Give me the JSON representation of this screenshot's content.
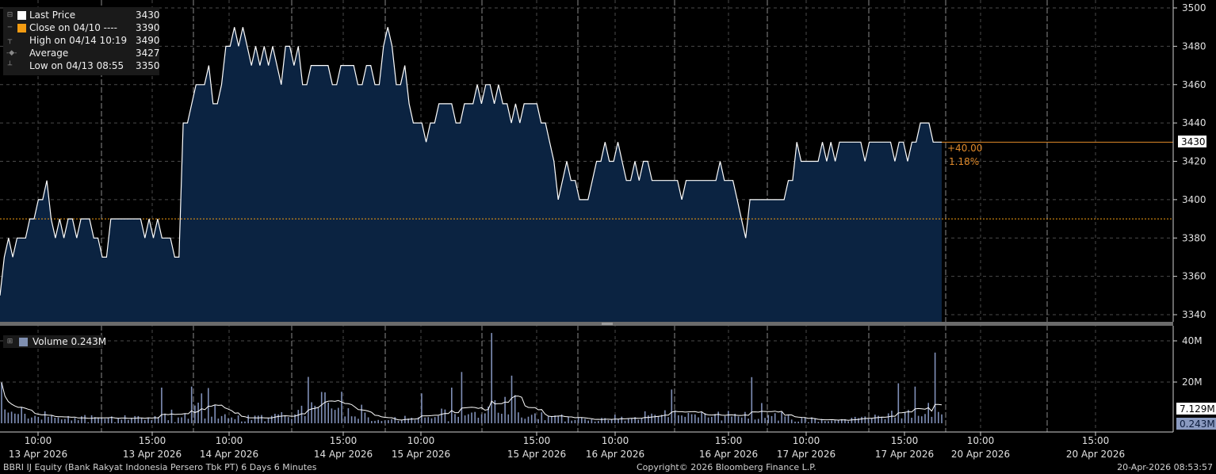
{
  "legend": {
    "items": [
      {
        "label": "Last Price",
        "value": "3430",
        "color": "#ffffff",
        "icon": "collapse-icon"
      },
      {
        "label": "Close on 04/10 ----",
        "value": "3390",
        "color": "#f39c12",
        "icon": "marker-icon"
      },
      {
        "label": "High on 04/14 10:19",
        "value": "3490",
        "color": "",
        "icon": "high-marker-icon"
      },
      {
        "label": "Average",
        "value": "3427",
        "color": "",
        "icon": "average-marker-icon"
      },
      {
        "label": "Low on 04/13 08:55",
        "value": "3350",
        "color": "",
        "icon": "low-marker-icon"
      }
    ]
  },
  "volume_legend": {
    "label": "Volume 0.243M",
    "color": "#7f8fb0",
    "icon": "collapse-icon"
  },
  "price_tag": {
    "value": "3430",
    "change": "+40.00",
    "change_pct": "1.18%"
  },
  "volume_tags": {
    "average": "7.129M",
    "last": "0.243M"
  },
  "footer": {
    "left": "BBRI IJ Equity (Bank Rakyat Indonesia Persero Tbk PT) 6 Days 6 Minutes",
    "center": "Copyright© 2026 Bloomberg Finance L.P.",
    "right": "20-Apr-2026 08:53:57"
  },
  "colors": {
    "area_fill": "#0b2341",
    "price_line": "#ffffff",
    "prev_close": "#f39c12",
    "volume_bar": "#7f8fb0",
    "grid": "#5a5a5a"
  },
  "chart_data": {
    "type": "area",
    "ylim": [
      3335,
      3505
    ],
    "y_ticks": [
      "3340",
      "3360",
      "3380",
      "3400",
      "3420",
      "3440",
      "3460",
      "3480",
      "3500"
    ],
    "prev_close": 3390,
    "x_ticks": [
      {
        "time": "10:00",
        "date": "13 Apr 2026"
      },
      {
        "time": "15:00",
        "date": "13 Apr 2026"
      },
      {
        "time": "10:00",
        "date": "14 Apr 2026"
      },
      {
        "time": "15:00",
        "date": "14 Apr 2026"
      },
      {
        "time": "10:00",
        "date": "15 Apr 2026"
      },
      {
        "time": "15:00",
        "date": "15 Apr 2026"
      },
      {
        "time": "10:00",
        "date": "16 Apr 2026"
      },
      {
        "time": "15:00",
        "date": "16 Apr 2026"
      },
      {
        "time": "10:00",
        "date": "17 Apr 2026"
      },
      {
        "time": "15:00",
        "date": "17 Apr 2026"
      },
      {
        "time": "10:00",
        "date": "20 Apr 2026"
      },
      {
        "time": "15:00",
        "date": "20 Apr 2026"
      }
    ],
    "prices": [
      3350,
      3370,
      3380,
      3370,
      3380,
      3380,
      3380,
      3390,
      3390,
      3400,
      3400,
      3410,
      3390,
      3380,
      3390,
      3380,
      3390,
      3390,
      3380,
      3390,
      3390,
      3390,
      3380,
      3380,
      3370,
      3370,
      3390,
      3390,
      3390,
      3390,
      3390,
      3390,
      3390,
      3390,
      3380,
      3390,
      3380,
      3390,
      3380,
      3380,
      3380,
      3370,
      3370,
      3440,
      3440,
      3450,
      3460,
      3460,
      3460,
      3470,
      3450,
      3450,
      3460,
      3480,
      3480,
      3490,
      3480,
      3490,
      3480,
      3470,
      3480,
      3470,
      3480,
      3470,
      3480,
      3470,
      3460,
      3480,
      3480,
      3470,
      3480,
      3460,
      3460,
      3470,
      3470,
      3470,
      3470,
      3470,
      3460,
      3460,
      3470,
      3470,
      3470,
      3470,
      3460,
      3460,
      3470,
      3470,
      3460,
      3460,
      3480,
      3490,
      3480,
      3460,
      3460,
      3470,
      3450,
      3440,
      3440,
      3440,
      3430,
      3440,
      3440,
      3450,
      3450,
      3450,
      3450,
      3440,
      3440,
      3450,
      3450,
      3450,
      3460,
      3450,
      3460,
      3460,
      3450,
      3460,
      3450,
      3450,
      3440,
      3450,
      3440,
      3450,
      3450,
      3450,
      3450,
      3440,
      3440,
      3430,
      3420,
      3400,
      3410,
      3420,
      3410,
      3410,
      3400,
      3400,
      3400,
      3410,
      3420,
      3420,
      3430,
      3420,
      3420,
      3430,
      3420,
      3410,
      3410,
      3420,
      3410,
      3420,
      3420,
      3410,
      3410,
      3410,
      3410,
      3410,
      3410,
      3410,
      3400,
      3410,
      3410,
      3410,
      3410,
      3410,
      3410,
      3410,
      3410,
      3420,
      3410,
      3410,
      3410,
      3400,
      3390,
      3380,
      3400,
      3400,
      3400,
      3400,
      3400,
      3400,
      3400,
      3400,
      3400,
      3410,
      3410,
      3430,
      3420,
      3420,
      3420,
      3420,
      3420,
      3430,
      3420,
      3430,
      3420,
      3430,
      3430,
      3430,
      3430,
      3430,
      3430,
      3420,
      3430,
      3430,
      3430,
      3430,
      3430,
      3430,
      3420,
      3430,
      3430,
      3420,
      3430,
      3430,
      3440,
      3440,
      3440,
      3430,
      3430,
      3430
    ],
    "volume_avg": 7.129,
    "volume_last": 0.243,
    "volume_ticks": [
      "20M",
      "40M"
    ],
    "volume_ylim": [
      0,
      45
    ],
    "volumes": [
      19.8,
      6.7,
      5.2,
      5.6,
      4.7,
      4.5,
      7.8,
      4.6,
      2.3,
      2.8,
      3.6,
      3.1,
      1.8,
      5.8,
      3.1,
      4.0,
      2.7,
      2.8,
      1.9,
      2.1,
      3.5,
      1.4,
      2.6,
      1.5,
      3.4,
      4.0,
      0.5,
      3.9,
      3.0,
      2.7,
      2.9,
      2.2,
      2.6,
      3.3,
      0.5,
      2.6,
      1.8,
      3.9,
      1.6,
      2.6,
      3.5,
      3.5,
      2.7,
      1.6,
      2.6,
      1.5,
      3.5,
      3.0,
      17.3,
      4.7,
      1.5,
      6.6,
      0.5,
      2.8,
      2.9,
      4.6,
      2.2,
      17.8,
      8.6,
      10.0,
      14.5,
      2.3,
      17.1,
      3.2,
      8.8,
      2.3,
      3.5,
      4.4,
      2.5,
      2.8,
      2.0,
      3.8,
      0.9,
      0.9,
      4.0,
      1.6,
      3.7,
      3.7,
      4.0,
      1.0,
      2.6,
      3.6,
      4.6,
      4.3,
      5.4,
      3.6,
      3.0,
      2.2,
      4.3,
      6.5,
      8.5,
      3.5,
      22.5,
      10.2,
      8.5,
      7.6,
      15.2,
      15.0,
      10.0,
      7.2,
      6.5,
      7.5,
      15.3,
      3.3,
      7.3,
      3.4,
      3.3,
      2.2,
      9.0,
      5.2,
      2.9,
      1.1,
      1.2,
      1.6,
      1.1,
      1.4,
      1.5,
      2.0,
      3.0,
      1.2,
      1.5,
      3.6,
      2.3,
      2.7,
      1.7,
      2.9,
      14.5,
      2.8,
      3.0,
      2.4,
      3.0,
      3.6,
      7.1,
      6.7,
      1.0,
      17.3,
      4.5,
      3.1,
      24.9,
      3.8,
      4.4,
      5.2,
      5.5,
      2.7,
      4.4,
      4.8,
      8.1,
      43.8,
      11.2,
      5.1,
      4.6,
      12.8,
      4.3,
      23.1,
      13.7,
      5.3,
      2.8,
      2.2,
      3.2,
      4.1,
      4.8,
      2.0,
      5.3,
      1.5,
      3.3,
      3.3,
      3.8,
      3.6,
      4.3,
      0.9,
      3.3,
      1.3,
      1.6,
      2.8,
      2.8,
      2.1,
      1.3,
      1.9,
      0.9,
      1.1,
      2.6,
      2.5,
      1.5,
      2.0,
      4.2,
      2.2,
      3.2,
      1.3,
      2.3,
      2.3,
      3.0,
      1.7,
      2.4,
      5.8,
      3.8,
      4.7,
      4.1,
      3.4,
      4.1,
      6.3,
      3.0,
      16.4,
      6.3,
      3.9,
      3.8,
      3.1,
      5.0,
      4.4,
      4.3,
      2.9,
      5.6,
      4.9,
      2.8,
      3.1,
      4.5,
      5.6,
      1.4,
      3.5,
      6.0,
      3.3,
      4.6,
      3.3,
      2.8,
      5.5,
      2.3,
      22.4,
      1.8,
      2.1,
      9.8,
      2.6,
      4.0,
      3.5,
      4.9,
      1.3,
      5.5,
      3.3,
      3.8,
      1.8,
      0.8,
      0.8,
      2.6,
      2.9,
      0.5,
      2.9,
      2.5,
      0.7,
      2.1,
      1.1,
      1.0,
      1.4,
      1.5,
      1.7,
      2.0,
      2.0,
      1.0,
      2.7,
      3.1,
      2.5,
      3.1,
      3.3,
      2.3,
      2.4,
      4.2,
      3.6,
      2.9,
      2.0,
      4.8,
      6.1,
      2.8,
      19.4,
      2.4,
      5.3,
      6.5,
      2.7,
      17.8,
      3.6,
      3.4,
      4.5,
      9.9,
      3.1,
      34.3,
      5.5,
      4.3
    ]
  }
}
